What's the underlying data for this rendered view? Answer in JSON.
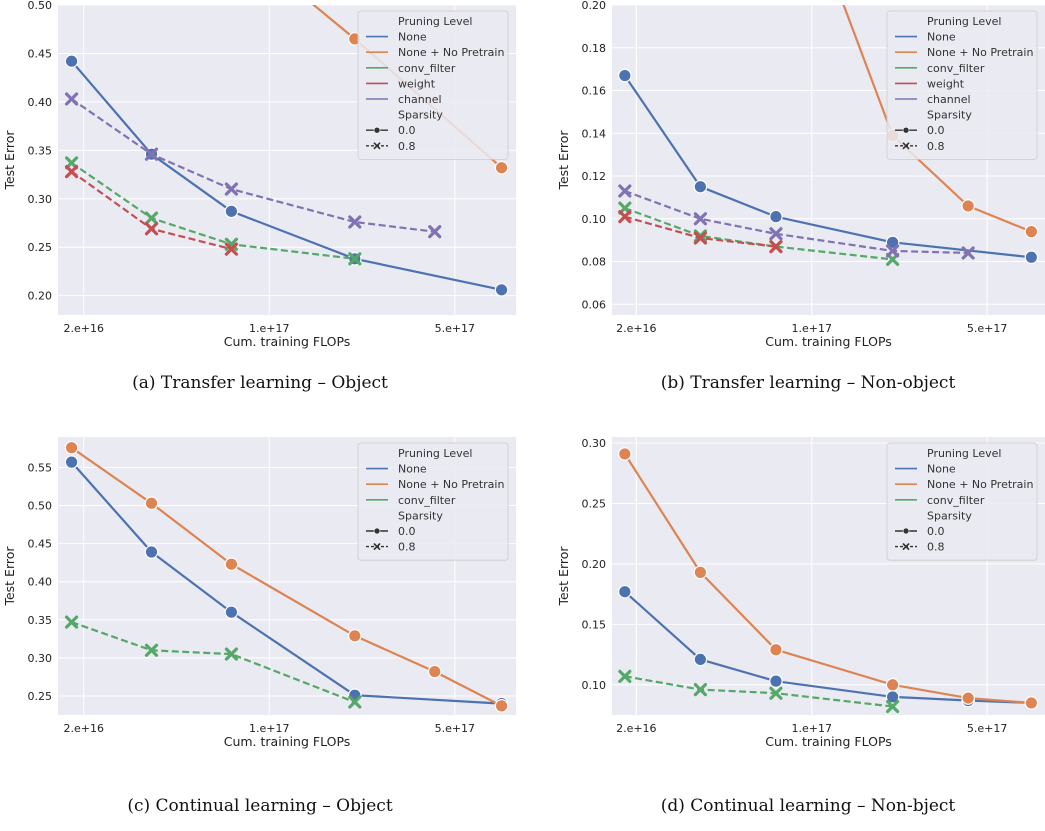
{
  "colors": {
    "plot_background": "#eaeaf2",
    "grid": "#ffffff",
    "None": "#4c72b0",
    "None + No Pretrain": "#dd8452",
    "conv_filter": "#55a868",
    "weight": "#c44e52",
    "channel": "#8172b3"
  },
  "chart_data": [
    {
      "id": "a",
      "type": "line",
      "caption": "(a) Transfer learning – Object",
      "xlabel": "Cum. training FLOPs",
      "ylabel": "Test Error",
      "xscale": "log",
      "xlim": [
        1.6e+16,
        8.5e+17
      ],
      "xticks": [
        {
          "value": 2e+16,
          "label": "2.e+16"
        },
        {
          "value": 1e+17,
          "label": "1.e+17"
        },
        {
          "value": 5e+17,
          "label": "5.e+17"
        }
      ],
      "ylim": [
        0.18,
        0.5
      ],
      "yticks": [
        {
          "value": 0.2,
          "label": "0.20"
        },
        {
          "value": 0.25,
          "label": "0.25"
        },
        {
          "value": 0.3,
          "label": "0.30"
        },
        {
          "value": 0.35,
          "label": "0.35"
        },
        {
          "value": 0.4,
          "label": "0.40"
        },
        {
          "value": 0.45,
          "label": "0.45"
        },
        {
          "value": 0.5,
          "label": "0.50"
        }
      ],
      "grid": true,
      "legend": {
        "placement": "top-right",
        "pruning_title": "Pruning Level",
        "pruning_items": [
          "None",
          "None + No Pretrain",
          "conv_filter",
          "weight",
          "channel"
        ],
        "sparsity_title": "Sparsity",
        "sparsity_items": [
          "0.0",
          "0.8"
        ]
      },
      "series": [
        {
          "name": "None",
          "sparsity": "0.0",
          "x": [
            1.8e+16,
            3.6e+16,
            7.2e+16,
            2.1e+17,
            7.5e+17
          ],
          "y": [
            0.442,
            0.346,
            0.287,
            0.238,
            0.206
          ]
        },
        {
          "name": "None + No Pretrain",
          "sparsity": "0.0",
          "x": [
            1.2e+17,
            2.1e+17,
            7.5e+17
          ],
          "y": [
            0.52,
            0.465,
            0.332
          ]
        },
        {
          "name": "conv_filter",
          "sparsity": "0.8",
          "x": [
            1.8e+16,
            3.6e+16,
            7.2e+16,
            2.1e+17
          ],
          "y": [
            0.337,
            0.28,
            0.253,
            0.238
          ]
        },
        {
          "name": "weight",
          "sparsity": "0.8",
          "x": [
            1.8e+16,
            3.6e+16,
            7.2e+16
          ],
          "y": [
            0.328,
            0.269,
            0.248
          ]
        },
        {
          "name": "channel",
          "sparsity": "0.8",
          "x": [
            1.8e+16,
            3.6e+16,
            7.2e+16,
            2.1e+17,
            4.2e+17
          ],
          "y": [
            0.403,
            0.346,
            0.31,
            0.276,
            0.266
          ]
        }
      ]
    },
    {
      "id": "b",
      "type": "line",
      "caption": "(b) Transfer learning – Non-object",
      "xlabel": "Cum. training FLOPs",
      "ylabel": "Test Error",
      "xscale": "log",
      "xlim": [
        1.6e+16,
        8.5e+17
      ],
      "xticks": [
        {
          "value": 2e+16,
          "label": "2.e+16"
        },
        {
          "value": 1e+17,
          "label": "1.e+17"
        },
        {
          "value": 5e+17,
          "label": "5.e+17"
        }
      ],
      "ylim": [
        0.055,
        0.2
      ],
      "yticks": [
        {
          "value": 0.06,
          "label": "0.06"
        },
        {
          "value": 0.08,
          "label": "0.08"
        },
        {
          "value": 0.1,
          "label": "0.10"
        },
        {
          "value": 0.12,
          "label": "0.12"
        },
        {
          "value": 0.14,
          "label": "0.14"
        },
        {
          "value": 0.16,
          "label": "0.16"
        },
        {
          "value": 0.18,
          "label": "0.18"
        },
        {
          "value": 0.2,
          "label": "0.20"
        }
      ],
      "grid": true,
      "legend": {
        "placement": "top-right",
        "pruning_title": "Pruning Level",
        "pruning_items": [
          "None",
          "None + No Pretrain",
          "conv_filter",
          "weight",
          "channel"
        ],
        "sparsity_title": "Sparsity",
        "sparsity_items": [
          "0.0",
          "0.8"
        ]
      },
      "series": [
        {
          "name": "None",
          "sparsity": "0.0",
          "x": [
            1.8e+16,
            3.6e+16,
            7.2e+16,
            2.1e+17,
            7.5e+17
          ],
          "y": [
            0.167,
            0.115,
            0.101,
            0.089,
            0.082
          ]
        },
        {
          "name": "None + No Pretrain",
          "sparsity": "0.0",
          "x": [
            1.2e+17,
            2.1e+17,
            4.2e+17,
            7.5e+17
          ],
          "y": [
            0.215,
            0.139,
            0.106,
            0.094
          ]
        },
        {
          "name": "conv_filter",
          "sparsity": "0.8",
          "x": [
            1.8e+16,
            3.6e+16,
            7.2e+16,
            2.1e+17
          ],
          "y": [
            0.105,
            0.092,
            0.087,
            0.081
          ]
        },
        {
          "name": "weight",
          "sparsity": "0.8",
          "x": [
            1.8e+16,
            3.6e+16,
            7.2e+16
          ],
          "y": [
            0.101,
            0.091,
            0.087
          ]
        },
        {
          "name": "channel",
          "sparsity": "0.8",
          "x": [
            1.8e+16,
            3.6e+16,
            7.2e+16,
            2.1e+17,
            4.2e+17
          ],
          "y": [
            0.113,
            0.1,
            0.093,
            0.085,
            0.084
          ]
        }
      ]
    },
    {
      "id": "c",
      "type": "line",
      "caption": "(c) Continual learning – Object",
      "xlabel": "Cum. training FLOPs",
      "ylabel": "Test Error",
      "xscale": "log",
      "xlim": [
        1.6e+16,
        8.5e+17
      ],
      "xticks": [
        {
          "value": 2e+16,
          "label": "2.e+16"
        },
        {
          "value": 1e+17,
          "label": "1.e+17"
        },
        {
          "value": 5e+17,
          "label": "5.e+17"
        }
      ],
      "ylim": [
        0.225,
        0.59
      ],
      "yticks": [
        {
          "value": 0.25,
          "label": "0.25"
        },
        {
          "value": 0.3,
          "label": "0.30"
        },
        {
          "value": 0.35,
          "label": "0.35"
        },
        {
          "value": 0.4,
          "label": "0.40"
        },
        {
          "value": 0.45,
          "label": "0.45"
        },
        {
          "value": 0.5,
          "label": "0.50"
        },
        {
          "value": 0.55,
          "label": "0.55"
        }
      ],
      "grid": true,
      "legend": {
        "placement": "top-right",
        "pruning_title": "Pruning Level",
        "pruning_items": [
          "None",
          "None + No Pretrain",
          "conv_filter"
        ],
        "sparsity_title": "Sparsity",
        "sparsity_items": [
          "0.0",
          "0.8"
        ]
      },
      "series": [
        {
          "name": "None",
          "sparsity": "0.0",
          "x": [
            1.8e+16,
            3.6e+16,
            7.2e+16,
            2.1e+17,
            7.5e+17
          ],
          "y": [
            0.557,
            0.439,
            0.36,
            0.251,
            0.24
          ]
        },
        {
          "name": "None + No Pretrain",
          "sparsity": "0.0",
          "x": [
            1.8e+16,
            3.6e+16,
            7.2e+16,
            2.1e+17,
            4.2e+17,
            7.5e+17
          ],
          "y": [
            0.576,
            0.503,
            0.423,
            0.329,
            0.282,
            0.237
          ]
        },
        {
          "name": "conv_filter",
          "sparsity": "0.8",
          "x": [
            1.8e+16,
            3.6e+16,
            7.2e+16,
            2.1e+17
          ],
          "y": [
            0.347,
            0.31,
            0.305,
            0.242
          ]
        }
      ]
    },
    {
      "id": "d",
      "type": "line",
      "caption": "(d) Continual learning – Non-bject",
      "xlabel": "Cum. training FLOPs",
      "ylabel": "Test Error",
      "xscale": "log",
      "xlim": [
        1.6e+16,
        8.5e+17
      ],
      "xticks": [
        {
          "value": 2e+16,
          "label": "2.e+16"
        },
        {
          "value": 1e+17,
          "label": "1.e+17"
        },
        {
          "value": 5e+17,
          "label": "5.e+17"
        }
      ],
      "ylim": [
        0.075,
        0.305
      ],
      "yticks": [
        {
          "value": 0.1,
          "label": "0.10"
        },
        {
          "value": 0.15,
          "label": "0.15"
        },
        {
          "value": 0.2,
          "label": "0.20"
        },
        {
          "value": 0.25,
          "label": "0.25"
        },
        {
          "value": 0.3,
          "label": "0.30"
        }
      ],
      "grid": true,
      "legend": {
        "placement": "top-right",
        "pruning_title": "Pruning Level",
        "pruning_items": [
          "None",
          "None + No Pretrain",
          "conv_filter"
        ],
        "sparsity_title": "Sparsity",
        "sparsity_items": [
          "0.0",
          "0.8"
        ]
      },
      "series": [
        {
          "name": "None",
          "sparsity": "0.0",
          "x": [
            1.8e+16,
            3.6e+16,
            7.2e+16,
            2.1e+17,
            4.2e+17,
            7.5e+17
          ],
          "y": [
            0.177,
            0.121,
            0.103,
            0.09,
            0.087,
            0.085
          ]
        },
        {
          "name": "None + No Pretrain",
          "sparsity": "0.0",
          "x": [
            1.8e+16,
            3.6e+16,
            7.2e+16,
            2.1e+17,
            4.2e+17,
            7.5e+17
          ],
          "y": [
            0.291,
            0.193,
            0.129,
            0.1,
            0.089,
            0.085
          ]
        },
        {
          "name": "conv_filter",
          "sparsity": "0.8",
          "x": [
            1.8e+16,
            3.6e+16,
            7.2e+16,
            2.1e+17
          ],
          "y": [
            0.107,
            0.096,
            0.093,
            0.082
          ]
        }
      ]
    }
  ]
}
